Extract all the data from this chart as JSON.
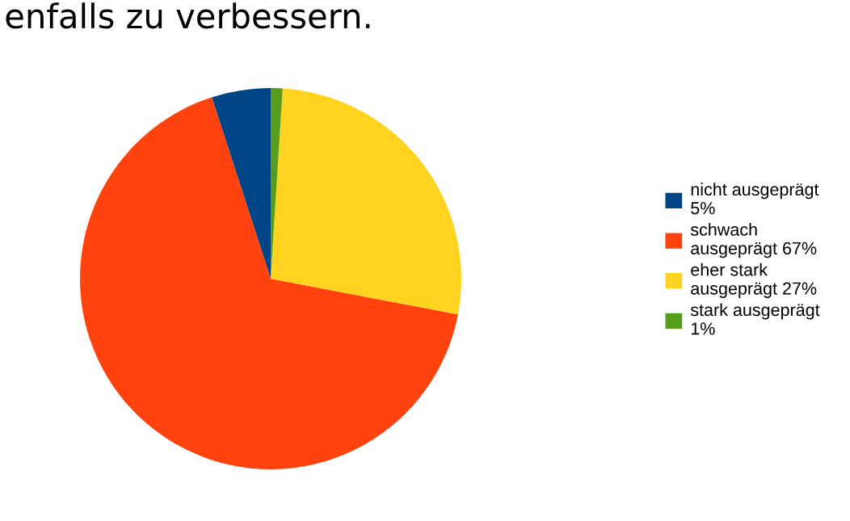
{
  "chart_data": {
    "type": "pie",
    "title": "enfalls zu verbessern.",
    "categories": [
      "nicht ausgeprägt",
      "schwach ausgeprägt",
      "eher stark ausgeprägt",
      "stark ausgeprägt"
    ],
    "values": [
      5,
      67,
      27,
      1
    ],
    "value_labels": [
      "5%",
      "67%",
      "27%",
      "1%"
    ],
    "colors": [
      "#004586",
      "#ff420e",
      "#ffd320",
      "#579d1c"
    ],
    "legend": "right"
  }
}
